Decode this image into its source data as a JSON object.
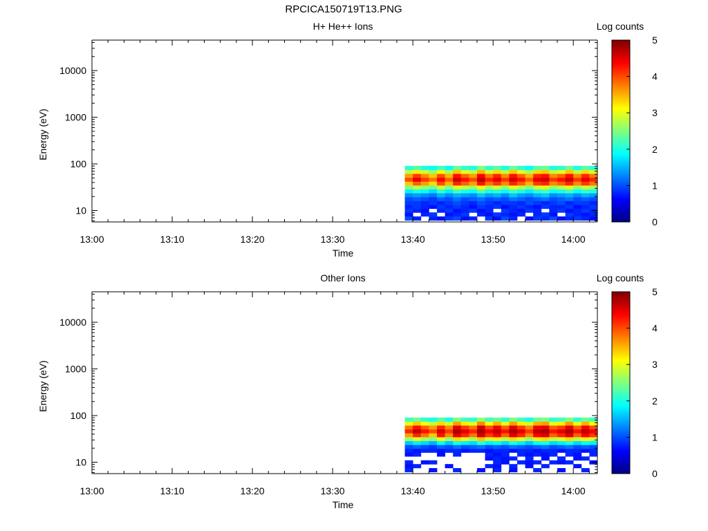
{
  "page": {
    "title": "RPCICA150719T13.PNG"
  },
  "chart_data": [
    {
      "type": "heatmap",
      "title": "H+ He++ Ions",
      "xlabel": "Time",
      "ylabel": "Energy (eV)",
      "x_ticks": [
        "13:00",
        "13:10",
        "13:20",
        "13:30",
        "13:40",
        "13:50",
        "14:00"
      ],
      "x_range": [
        "13:00",
        "14:03"
      ],
      "y_scale": "log",
      "y_ticks": [
        10,
        100,
        1000,
        10000
      ],
      "y_tick_labels": [
        "10",
        "100",
        "1000",
        "10000"
      ],
      "y_range": [
        5.7,
        45000
      ],
      "grid": false,
      "colorbar": {
        "label": "Log counts",
        "range": [
          0,
          5
        ],
        "tick_labels": [
          "0",
          "1",
          "2",
          "3",
          "4",
          "5"
        ],
        "colormap": "jet"
      },
      "data_time_range": [
        "13:39",
        "14:03"
      ],
      "energy_bins_eV": [
        6.8,
        8.3,
        10.0,
        12.1,
        14.7,
        17.8,
        21.5,
        26.1,
        31.6,
        38.3,
        46.4,
        56.2,
        68.1,
        82.5
      ],
      "time_bins": [
        "13:39",
        "13:40",
        "13:41",
        "13:42",
        "13:43",
        "13:44",
        "13:45",
        "13:46",
        "13:47",
        "13:48",
        "13:49",
        "13:50",
        "13:51",
        "13:52",
        "13:53",
        "13:54",
        "13:55",
        "13:56",
        "13:57",
        "13:58",
        "13:59",
        "14:00",
        "14:01",
        "14:02"
      ],
      "log_counts": [
        [
          1.0,
          0.8,
          null,
          0.8,
          0.7,
          0.9,
          1.0,
          0.7,
          0.8,
          null,
          0.9,
          0.7,
          1.0,
          0.8,
          null,
          0.7,
          0.9,
          0.8,
          1.0,
          0.7,
          0.8,
          0.9,
          0.8,
          0.7
        ],
        [
          0.7,
          null,
          0.8,
          0.9,
          null,
          0.7,
          0.8,
          0.9,
          null,
          0.8,
          0.7,
          0.9,
          0.8,
          0.7,
          0.8,
          null,
          0.8,
          0.9,
          0.7,
          null,
          0.9,
          0.8,
          0.7,
          0.8
        ],
        [
          0.9,
          0.8,
          0.7,
          null,
          0.8,
          0.9,
          0.7,
          0.8,
          0.9,
          0.7,
          0.8,
          null,
          0.9,
          0.8,
          0.7,
          0.9,
          0.8,
          null,
          0.8,
          0.9,
          0.7,
          0.8,
          0.9,
          0.8
        ],
        [
          0.8,
          0.9,
          0.8,
          0.7,
          0.9,
          0.8,
          0.9,
          0.8,
          0.7,
          0.9,
          0.8,
          0.9,
          0.7,
          0.8,
          0.9,
          0.8,
          0.7,
          0.9,
          0.8,
          0.8,
          0.9,
          0.7,
          0.8,
          0.9
        ],
        [
          0.9,
          0.9,
          0.8,
          0.9,
          0.8,
          0.9,
          1.0,
          0.9,
          0.8,
          1.0,
          0.9,
          0.8,
          0.9,
          0.9,
          0.8,
          1.0,
          0.9,
          0.8,
          0.9,
          1.0,
          0.8,
          0.9,
          0.9,
          0.8
        ],
        [
          1.0,
          1.1,
          1.0,
          0.9,
          1.1,
          1.0,
          1.2,
          1.0,
          1.1,
          1.2,
          1.0,
          1.1,
          1.0,
          1.2,
          1.1,
          1.0,
          1.1,
          1.2,
          1.0,
          1.1,
          1.2,
          1.0,
          1.1,
          1.0
        ],
        [
          1.3,
          1.4,
          1.3,
          1.2,
          1.5,
          1.3,
          1.5,
          1.4,
          1.3,
          1.6,
          1.4,
          1.5,
          1.3,
          1.6,
          1.4,
          1.3,
          1.5,
          1.6,
          1.3,
          1.4,
          1.5,
          1.3,
          1.5,
          1.4
        ],
        [
          1.8,
          2.0,
          1.9,
          1.7,
          2.1,
          1.8,
          2.2,
          2.0,
          1.9,
          2.3,
          2.0,
          2.1,
          1.9,
          2.2,
          2.0,
          1.8,
          2.1,
          2.2,
          1.9,
          2.0,
          2.2,
          1.9,
          2.1,
          2.0
        ],
        [
          2.5,
          2.8,
          2.6,
          2.4,
          2.9,
          2.5,
          3.0,
          2.8,
          2.6,
          3.1,
          2.7,
          2.9,
          2.6,
          3.0,
          2.8,
          2.5,
          2.9,
          3.0,
          2.6,
          2.8,
          3.0,
          2.6,
          2.9,
          2.7
        ],
        [
          3.4,
          3.9,
          3.6,
          3.3,
          4.0,
          3.5,
          4.2,
          3.9,
          3.6,
          4.3,
          3.8,
          4.1,
          3.7,
          4.2,
          3.9,
          3.5,
          4.1,
          4.2,
          3.7,
          3.9,
          4.2,
          3.7,
          4.1,
          3.8
        ],
        [
          4.0,
          4.5,
          4.1,
          3.8,
          4.4,
          3.9,
          4.6,
          4.3,
          4.0,
          4.7,
          4.2,
          4.5,
          4.1,
          4.6,
          4.3,
          3.9,
          4.5,
          4.6,
          4.1,
          4.3,
          4.6,
          4.1,
          4.5,
          4.2
        ],
        [
          3.6,
          4.1,
          3.7,
          3.4,
          4.0,
          3.5,
          4.3,
          3.9,
          3.6,
          4.4,
          3.8,
          4.2,
          3.7,
          4.3,
          3.9,
          3.5,
          4.2,
          4.3,
          3.7,
          3.9,
          4.3,
          3.7,
          4.2,
          3.8
        ],
        [
          2.8,
          3.2,
          2.9,
          2.6,
          3.1,
          2.7,
          3.4,
          3.0,
          2.8,
          3.5,
          2.9,
          3.3,
          2.8,
          3.4,
          3.0,
          2.7,
          3.3,
          3.4,
          2.8,
          3.0,
          3.4,
          2.8,
          3.3,
          2.9
        ],
        [
          2.1,
          2.3,
          2.0,
          1.9,
          2.2,
          1.9,
          2.4,
          2.1,
          2.0,
          2.5,
          2.1,
          2.3,
          2.0,
          2.4,
          2.1,
          1.9,
          2.3,
          2.4,
          2.0,
          2.1,
          2.4,
          2.0,
          2.3,
          2.1
        ]
      ]
    },
    {
      "type": "heatmap",
      "title": "Other Ions",
      "xlabel": "Time",
      "ylabel": "Energy (eV)",
      "x_ticks": [
        "13:00",
        "13:10",
        "13:20",
        "13:30",
        "13:40",
        "13:50",
        "14:00"
      ],
      "x_range": [
        "13:00",
        "14:03"
      ],
      "y_scale": "log",
      "y_ticks": [
        10,
        100,
        1000,
        10000
      ],
      "y_tick_labels": [
        "10",
        "100",
        "1000",
        "10000"
      ],
      "y_range": [
        5.7,
        45000
      ],
      "grid": false,
      "colorbar": {
        "label": "Log counts",
        "range": [
          0,
          5
        ],
        "tick_labels": [
          "0",
          "1",
          "2",
          "3",
          "4",
          "5"
        ],
        "colormap": "jet"
      },
      "data_time_range": [
        "13:39",
        "14:03"
      ],
      "energy_bins_eV": [
        6.8,
        8.3,
        10.0,
        12.1,
        14.7,
        17.8,
        21.5,
        26.1,
        31.6,
        38.3,
        46.4,
        56.2,
        68.1,
        82.5
      ],
      "time_bins": [
        "13:39",
        "13:40",
        "13:41",
        "13:42",
        "13:43",
        "13:44",
        "13:45",
        "13:46",
        "13:47",
        "13:48",
        "13:49",
        "13:50",
        "13:51",
        "13:52",
        "13:53",
        "13:54",
        "13:55",
        "13:56",
        "13:57",
        "13:58",
        "13:59",
        "14:00",
        "14:01",
        "14:02"
      ],
      "log_counts": [
        [
          0.8,
          null,
          null,
          0.7,
          null,
          null,
          0.8,
          null,
          null,
          0.7,
          null,
          0.8,
          null,
          0.7,
          null,
          null,
          0.8,
          null,
          null,
          0.7,
          null,
          null,
          0.8,
          null
        ],
        [
          0.7,
          0.8,
          null,
          null,
          null,
          0.7,
          null,
          null,
          null,
          null,
          0.8,
          0.7,
          null,
          0.8,
          null,
          0.7,
          null,
          0.8,
          null,
          null,
          null,
          0.7,
          null,
          null
        ],
        [
          0.8,
          null,
          0.7,
          0.8,
          null,
          null,
          null,
          null,
          null,
          null,
          null,
          0.8,
          0.7,
          null,
          0.8,
          0.7,
          0.8,
          null,
          0.8,
          0.7,
          0.8,
          null,
          null,
          0.7
        ],
        [
          null,
          null,
          null,
          null,
          null,
          null,
          null,
          null,
          null,
          null,
          0.7,
          0.8,
          0.7,
          0.8,
          null,
          0.8,
          null,
          0.7,
          null,
          0.8,
          null,
          0.7,
          0.8,
          null
        ],
        [
          0.7,
          0.8,
          null,
          null,
          0.7,
          null,
          0.8,
          null,
          null,
          null,
          0.8,
          0.7,
          0.8,
          null,
          0.8,
          0.7,
          0.8,
          0.7,
          0.8,
          null,
          0.8,
          0.7,
          null,
          0.8
        ],
        [
          0.8,
          0.7,
          0.8,
          0.8,
          0.7,
          0.8,
          0.8,
          0.7,
          0.8,
          0.8,
          0.7,
          0.8,
          0.8,
          0.7,
          0.8,
          0.8,
          0.7,
          0.8,
          0.8,
          0.7,
          0.8,
          0.8,
          0.7,
          0.8
        ],
        [
          1.0,
          1.1,
          1.0,
          0.9,
          1.1,
          1.0,
          1.2,
          1.0,
          1.1,
          1.2,
          1.0,
          1.1,
          1.0,
          1.2,
          1.1,
          1.0,
          1.1,
          1.2,
          1.0,
          1.1,
          1.2,
          1.0,
          1.1,
          1.0
        ],
        [
          1.6,
          1.8,
          1.7,
          1.5,
          1.9,
          1.6,
          2.0,
          1.8,
          1.7,
          2.1,
          1.8,
          1.9,
          1.7,
          2.0,
          1.8,
          1.6,
          1.9,
          2.0,
          1.7,
          1.8,
          2.0,
          1.7,
          1.9,
          1.8
        ],
        [
          2.6,
          3.0,
          2.7,
          2.5,
          3.1,
          2.6,
          3.3,
          3.0,
          2.7,
          3.4,
          2.9,
          3.2,
          2.8,
          3.3,
          3.0,
          2.6,
          3.2,
          3.3,
          2.8,
          3.0,
          3.3,
          2.8,
          3.2,
          2.9
        ],
        [
          3.6,
          4.2,
          3.8,
          3.4,
          4.3,
          3.7,
          4.5,
          4.2,
          3.8,
          4.6,
          4.1,
          4.4,
          3.9,
          4.5,
          4.2,
          3.7,
          4.4,
          4.5,
          3.9,
          4.2,
          4.5,
          3.9,
          4.4,
          4.1
        ],
        [
          4.2,
          4.7,
          4.3,
          4.0,
          4.6,
          4.1,
          4.8,
          4.5,
          4.2,
          4.8,
          4.4,
          4.7,
          4.3,
          4.8,
          4.5,
          4.1,
          4.7,
          4.8,
          4.3,
          4.5,
          4.8,
          4.3,
          4.7,
          4.4
        ],
        [
          3.8,
          4.3,
          3.9,
          3.6,
          4.2,
          3.7,
          4.5,
          4.1,
          3.8,
          4.6,
          4.0,
          4.4,
          3.9,
          4.5,
          4.1,
          3.7,
          4.4,
          4.5,
          3.9,
          4.1,
          4.5,
          3.9,
          4.4,
          4.0
        ],
        [
          3.0,
          3.4,
          3.1,
          2.8,
          3.3,
          2.9,
          3.6,
          3.2,
          3.0,
          3.7,
          3.1,
          3.5,
          3.0,
          3.6,
          3.2,
          2.9,
          3.5,
          3.6,
          3.0,
          3.2,
          3.6,
          3.0,
          3.5,
          3.1
        ],
        [
          2.2,
          2.4,
          2.1,
          2.0,
          2.3,
          2.0,
          2.5,
          2.2,
          2.1,
          2.6,
          2.2,
          2.4,
          2.1,
          2.5,
          2.2,
          2.0,
          2.4,
          2.5,
          2.1,
          2.2,
          2.5,
          2.1,
          2.4,
          2.2
        ]
      ]
    }
  ]
}
